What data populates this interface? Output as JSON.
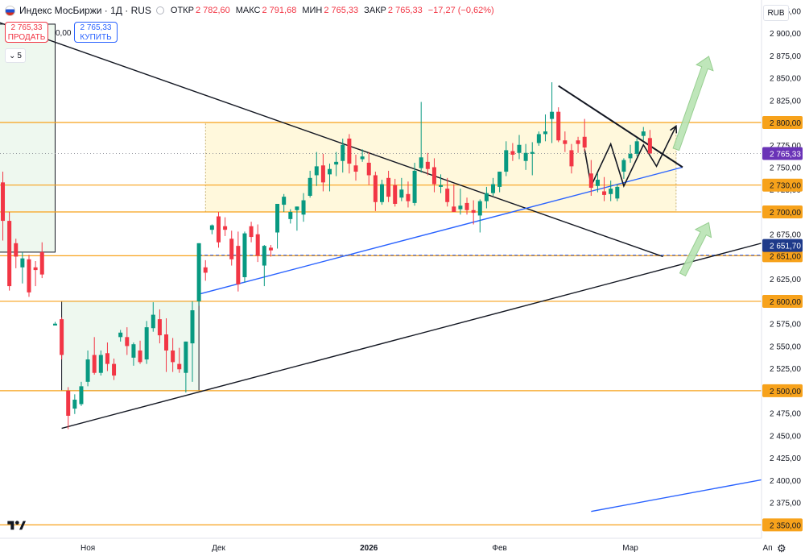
{
  "header": {
    "symbol": "Индекс МосБиржи · 1Д · RUS",
    "open_label": "ОТКР",
    "open": "2 782,60",
    "high_label": "МАКС",
    "high": "2 791,68",
    "low_label": "МИН",
    "low": "2 765,33",
    "close_label": "ЗАКР",
    "close": "2 765,33",
    "change": "−17,27 (−0,62%)"
  },
  "trade": {
    "sell_price": "2 765,33",
    "sell_label": "ПРОДАТЬ",
    "spread": "0,00",
    "buy_price": "2 765,33",
    "buy_label": "КУПИТЬ",
    "collapse_count": "5"
  },
  "currency": "RUB",
  "colors": {
    "up": "#089981",
    "down": "#f23645",
    "orange": "#f7a21b",
    "blue": "#2962ff",
    "purple": "#6a33b7"
  },
  "chart_data": {
    "type": "candlestick",
    "ylim": [
      2335,
      2937
    ],
    "y_ticks": [
      2350,
      2375,
      2400,
      2425,
      2450,
      2475,
      2500,
      2525,
      2550,
      2575,
      2600,
      2625,
      2650,
      2675,
      2700,
      2725,
      2750,
      2775,
      2800,
      2825,
      2850,
      2875,
      2900,
      2925
    ],
    "x_ticks": [
      {
        "label": "Ноя",
        "day": 9
      },
      {
        "label": "Дек",
        "day": 29
      },
      {
        "label": "2026",
        "day": 52
      },
      {
        "label": "Фев",
        "day": 72
      },
      {
        "label": "Мар",
        "day": 92
      },
      {
        "label": "Ап",
        "day": 113
      }
    ],
    "candles": [
      [
        -5,
        2760,
        2763,
        2725,
        2732
      ],
      [
        -4,
        2733,
        2745,
        2668,
        2690
      ],
      [
        -3,
        2690,
        2700,
        2612,
        2617
      ],
      [
        -2,
        2665,
        2670,
        2637,
        2650
      ],
      [
        -1,
        2638,
        2655,
        2620,
        2648
      ],
      [
        0,
        2647,
        2652,
        2605,
        2610
      ],
      [
        1,
        2638,
        2645,
        2617,
        2635
      ],
      [
        2,
        2655,
        2666,
        2626,
        2630
      ],
      [
        4,
        2573,
        2577,
        2575,
        2575
      ],
      [
        5,
        2580,
        2582,
        2535,
        2540
      ],
      [
        6,
        2500,
        2504,
        2457,
        2472
      ],
      [
        7,
        2480,
        2496,
        2474,
        2490
      ],
      [
        8,
        2485,
        2510,
        2483,
        2505
      ],
      [
        9,
        2510,
        2545,
        2505,
        2535
      ],
      [
        10,
        2540,
        2560,
        2518,
        2520
      ],
      [
        11,
        2520,
        2545,
        2517,
        2540
      ],
      [
        12,
        2542,
        2554,
        2522,
        2530
      ],
      [
        13,
        2530,
        2536,
        2512,
        2517
      ],
      [
        14,
        2560,
        2568,
        2555,
        2565
      ],
      [
        15,
        2560,
        2571,
        2540,
        2550
      ],
      [
        16,
        2537,
        2554,
        2528,
        2552
      ],
      [
        17,
        2545,
        2556,
        2530,
        2532
      ],
      [
        18,
        2535,
        2578,
        2530,
        2571
      ],
      [
        19,
        2570,
        2599,
        2566,
        2585
      ],
      [
        20,
        2580,
        2591,
        2553,
        2562
      ],
      [
        21,
        2563,
        2581,
        2521,
        2545
      ],
      [
        22,
        2545,
        2559,
        2521,
        2532
      ],
      [
        23,
        2530,
        2548,
        2520,
        2524
      ],
      [
        24,
        2520,
        2555,
        2498,
        2555
      ],
      [
        25,
        2553,
        2600,
        2510,
        2590
      ],
      [
        26,
        2600,
        2665,
        2595,
        2665
      ],
      [
        27,
        2638,
        2646,
        2623,
        2632
      ],
      [
        28,
        2680,
        2686,
        2675,
        2685
      ],
      [
        29,
        2695,
        2700,
        2660,
        2666
      ],
      [
        30,
        2684,
        2694,
        2673,
        2680
      ],
      [
        31,
        2670,
        2679,
        2640,
        2647
      ],
      [
        32,
        2662,
        2678,
        2611,
        2619
      ],
      [
        33,
        2627,
        2678,
        2621,
        2676
      ],
      [
        34,
        2684,
        2689,
        2666,
        2672
      ],
      [
        35,
        2675,
        2686,
        2644,
        2651
      ],
      [
        36,
        2640,
        2663,
        2617,
        2662
      ],
      [
        37,
        2660,
        2663,
        2650,
        2657
      ],
      [
        38,
        2677,
        2709,
        2659,
        2709
      ],
      [
        39,
        2708,
        2720,
        2700,
        2717
      ],
      [
        40,
        2692,
        2703,
        2687,
        2700
      ],
      [
        41,
        2702,
        2706,
        2679,
        2706
      ],
      [
        42,
        2697,
        2721,
        2689,
        2713
      ],
      [
        43,
        2718,
        2746,
        2716,
        2738
      ],
      [
        44,
        2741,
        2767,
        2729,
        2751
      ],
      [
        45,
        2752,
        2765,
        2723,
        2733
      ],
      [
        46,
        2742,
        2754,
        2723,
        2748
      ],
      [
        47,
        2753,
        2767,
        2740,
        2756
      ],
      [
        48,
        2757,
        2782,
        2744,
        2775
      ],
      [
        49,
        2782,
        2787,
        2743,
        2754
      ],
      [
        50,
        2752,
        2764,
        2735,
        2745
      ],
      [
        51,
        2759,
        2770,
        2756,
        2762
      ],
      [
        52,
        2755,
        2767,
        2730,
        2741
      ],
      [
        53,
        2741,
        2745,
        2701,
        2711
      ],
      [
        54,
        2711,
        2736,
        2708,
        2731
      ],
      [
        55,
        2738,
        2746,
        2711,
        2717
      ],
      [
        56,
        2730,
        2737,
        2706,
        2709
      ],
      [
        57,
        2716,
        2738,
        2712,
        2725
      ],
      [
        58,
        2720,
        2734,
        2705,
        2712
      ],
      [
        59,
        2710,
        2755,
        2707,
        2746
      ],
      [
        60,
        2749,
        2823,
        2744,
        2761
      ],
      [
        61,
        2756,
        2766,
        2741,
        2748
      ],
      [
        62,
        2750,
        2760,
        2722,
        2731
      ],
      [
        63,
        2728,
        2742,
        2721,
        2730
      ],
      [
        64,
        2726,
        2738,
        2706,
        2711
      ],
      [
        65,
        2706,
        2731,
        2700,
        2700
      ],
      [
        66,
        2703,
        2726,
        2697,
        2707
      ],
      [
        67,
        2710,
        2716,
        2697,
        2702
      ],
      [
        68,
        2702,
        2713,
        2686,
        2699
      ],
      [
        69,
        2696,
        2714,
        2677,
        2712
      ],
      [
        70,
        2712,
        2728,
        2704,
        2721
      ],
      [
        71,
        2721,
        2738,
        2718,
        2731
      ],
      [
        72,
        2728,
        2745,
        2722,
        2745
      ],
      [
        73,
        2745,
        2779,
        2740,
        2769
      ],
      [
        74,
        2768,
        2777,
        2757,
        2764
      ],
      [
        75,
        2766,
        2786,
        2759,
        2775
      ],
      [
        76,
        2757,
        2776,
        2747,
        2766
      ],
      [
        77,
        2765,
        2778,
        2741,
        2767
      ],
      [
        78,
        2777,
        2790,
        2774,
        2787
      ],
      [
        79,
        2787,
        2809,
        2779,
        2790
      ],
      [
        80,
        2804,
        2845,
        2777,
        2812
      ],
      [
        81,
        2812,
        2817,
        2778,
        2780
      ],
      [
        82,
        2780,
        2790,
        2767,
        2776
      ],
      [
        83,
        2769,
        2776,
        2743,
        2751
      ],
      [
        84,
        2780,
        2784,
        2766,
        2776
      ],
      [
        85,
        2784,
        2804,
        2768,
        2772
      ],
      [
        86,
        2743,
        2758,
        2718,
        2727
      ],
      [
        87,
        2729,
        2743,
        2722,
        2736
      ],
      [
        88,
        2723,
        2739,
        2712,
        2719
      ],
      [
        89,
        2720,
        2735,
        2712,
        2726
      ],
      [
        90,
        2715,
        2731,
        2712,
        2728
      ],
      [
        91,
        2745,
        2760,
        2737,
        2758
      ],
      [
        92,
        2760,
        2775,
        2755,
        2765
      ],
      [
        93,
        2765,
        2782,
        2762,
        2779
      ],
      [
        94,
        2785,
        2795,
        2780,
        2790
      ],
      [
        95,
        2782.6,
        2791.68,
        2765.33,
        2765.33
      ]
    ],
    "horizontal_levels": [
      {
        "price": 2800,
        "label": "2 800,00",
        "color": "#f7a21b"
      },
      {
        "price": 2730,
        "label": "2 730,00",
        "color": "#f7a21b"
      },
      {
        "price": 2700,
        "label": "2 700,00",
        "color": "#f7a21b"
      },
      {
        "price": 2651,
        "label": "2 651,00",
        "color": "#f7a21b"
      },
      {
        "price": 2600,
        "label": "2 600,00",
        "color": "#f7a21b"
      },
      {
        "price": 2500,
        "label": "2 500,00",
        "color": "#f7a21b"
      },
      {
        "price": 2350,
        "label": "2 350,00",
        "color": "#f7a21b"
      }
    ],
    "last_price": {
      "price": 2765.33,
      "label": "2 765,33"
    },
    "dashed_level": {
      "price": 2651.7,
      "label": "2 651,70"
    },
    "trend_lines": [
      {
        "from": [
          -5,
          2913
        ],
        "to": [
          97,
          2650
        ],
        "color": "#131722"
      },
      {
        "from": [
          5,
          2458
        ],
        "to": [
          125,
          2690
        ],
        "color": "#131722"
      },
      {
        "from": [
          26,
          2608
        ],
        "to": [
          100,
          2750
        ],
        "color": "#2962ff"
      },
      {
        "from": [
          86,
          2365
        ],
        "to": [
          125,
          2418
        ],
        "color": "#2962ff"
      },
      {
        "from": [
          81,
          2841
        ],
        "to": [
          100,
          2750
        ],
        "color": "#131722"
      }
    ],
    "zigzag": [
      [
        85,
        2770
      ],
      [
        86,
        2729
      ],
      [
        89,
        2776
      ],
      [
        91,
        2729
      ],
      [
        94,
        2775
      ],
      [
        96,
        2751
      ],
      [
        99,
        2796
      ]
    ],
    "rectangles": [
      {
        "x0": 27,
        "x1": 99,
        "y0": 2700,
        "y1": 2800,
        "fill": "#fff8dc",
        "stroke": "#b8a15a"
      },
      {
        "x0": 5,
        "x1": 26,
        "y0": 2500,
        "y1": 2600,
        "fill": "#eef8ef",
        "stroke": "#131722"
      },
      {
        "x0": -5,
        "x1": 4,
        "y0": 2655,
        "y1": 2910,
        "fill": "#eef8ef",
        "stroke": "#131722"
      }
    ],
    "arrows": [
      {
        "from": [
          99,
          2770
        ],
        "to": [
          104,
          2874
        ]
      },
      {
        "from": [
          100,
          2630
        ],
        "to": [
          104,
          2688
        ]
      }
    ]
  }
}
